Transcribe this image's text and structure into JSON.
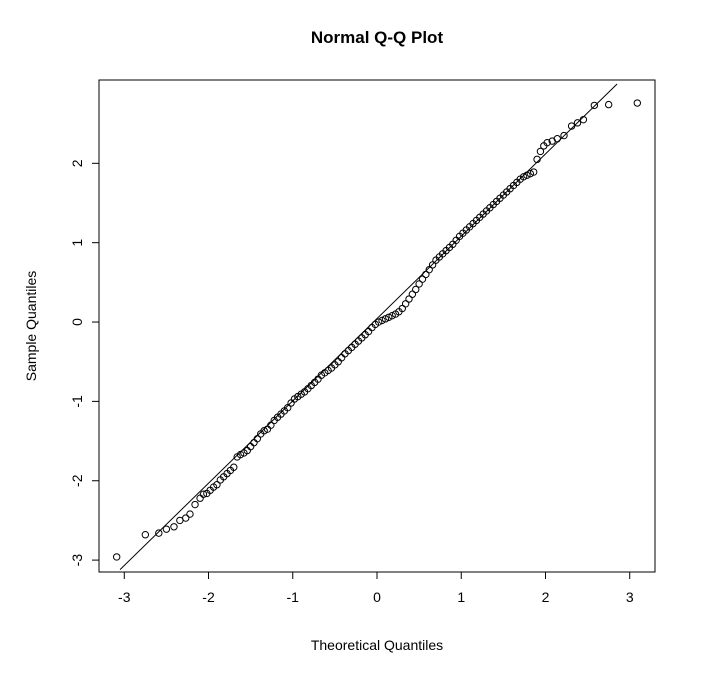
{
  "chart_data": {
    "type": "scatter",
    "title": "Normal Q-Q Plot",
    "xlabel": "Theoretical Quantiles",
    "ylabel": "Sample Quantiles",
    "xlim": [
      -3.3,
      3.3
    ],
    "ylim": [
      -3.15,
      3.05
    ],
    "xticks": [
      -3,
      -2,
      -1,
      0,
      1,
      2,
      3
    ],
    "yticks": [
      -3,
      -2,
      -1,
      0,
      1,
      2
    ],
    "xtick_labels": [
      "-3",
      "-2",
      "-1",
      "0",
      "1",
      "2",
      "3"
    ],
    "ytick_labels": [
      "-3",
      "-2",
      "-1",
      "0",
      "1",
      "2"
    ],
    "grid": false,
    "legend": "none",
    "point_color": "#000000",
    "marker": "open-circle",
    "reference_line": {
      "kind": "qqline",
      "points": [
        [
          -3.05,
          -3.12
        ],
        [
          2.85,
          3.0
        ]
      ]
    },
    "points": [
      [
        -3.09,
        -2.96
      ],
      [
        -2.75,
        -2.68
      ],
      [
        -2.59,
        -2.66
      ],
      [
        -2.5,
        -2.61
      ],
      [
        -2.41,
        -2.58
      ],
      [
        -2.34,
        -2.5
      ],
      [
        -2.27,
        -2.47
      ],
      [
        -2.22,
        -2.42
      ],
      [
        -2.16,
        -2.3
      ],
      [
        -2.1,
        -2.22
      ],
      [
        -2.06,
        -2.17
      ],
      [
        -2.02,
        -2.16
      ],
      [
        -1.98,
        -2.12
      ],
      [
        -1.94,
        -2.08
      ],
      [
        -1.9,
        -2.05
      ],
      [
        -1.86,
        -1.99
      ],
      [
        -1.82,
        -1.95
      ],
      [
        -1.78,
        -1.91
      ],
      [
        -1.74,
        -1.87
      ],
      [
        -1.7,
        -1.83
      ],
      [
        -1.66,
        -1.7
      ],
      [
        -1.62,
        -1.67
      ],
      [
        -1.58,
        -1.65
      ],
      [
        -1.54,
        -1.62
      ],
      [
        -1.5,
        -1.57
      ],
      [
        -1.46,
        -1.52
      ],
      [
        -1.42,
        -1.47
      ],
      [
        -1.38,
        -1.41
      ],
      [
        -1.34,
        -1.37
      ],
      [
        -1.3,
        -1.35
      ],
      [
        -1.26,
        -1.3
      ],
      [
        -1.22,
        -1.24
      ],
      [
        -1.18,
        -1.2
      ],
      [
        -1.14,
        -1.16
      ],
      [
        -1.1,
        -1.12
      ],
      [
        -1.06,
        -1.08
      ],
      [
        -1.02,
        -1.02
      ],
      [
        -0.98,
        -0.97
      ],
      [
        -0.94,
        -0.94
      ],
      [
        -0.9,
        -0.91
      ],
      [
        -0.86,
        -0.88
      ],
      [
        -0.82,
        -0.84
      ],
      [
        -0.78,
        -0.8
      ],
      [
        -0.74,
        -0.76
      ],
      [
        -0.7,
        -0.72
      ],
      [
        -0.66,
        -0.67
      ],
      [
        -0.62,
        -0.64
      ],
      [
        -0.58,
        -0.61
      ],
      [
        -0.54,
        -0.58
      ],
      [
        -0.5,
        -0.54
      ],
      [
        -0.46,
        -0.5
      ],
      [
        -0.42,
        -0.45
      ],
      [
        -0.38,
        -0.4
      ],
      [
        -0.34,
        -0.36
      ],
      [
        -0.3,
        -0.32
      ],
      [
        -0.26,
        -0.28
      ],
      [
        -0.22,
        -0.24
      ],
      [
        -0.18,
        -0.2
      ],
      [
        -0.14,
        -0.16
      ],
      [
        -0.1,
        -0.12
      ],
      [
        -0.06,
        -0.07
      ],
      [
        -0.02,
        -0.03
      ],
      [
        0.02,
        0.0
      ],
      [
        0.06,
        0.02
      ],
      [
        0.1,
        0.04
      ],
      [
        0.14,
        0.06
      ],
      [
        0.18,
        0.08
      ],
      [
        0.22,
        0.1
      ],
      [
        0.26,
        0.13
      ],
      [
        0.3,
        0.17
      ],
      [
        0.34,
        0.23
      ],
      [
        0.38,
        0.29
      ],
      [
        0.42,
        0.35
      ],
      [
        0.46,
        0.41
      ],
      [
        0.5,
        0.48
      ],
      [
        0.54,
        0.54
      ],
      [
        0.58,
        0.6
      ],
      [
        0.62,
        0.66
      ],
      [
        0.66,
        0.72
      ],
      [
        0.7,
        0.78
      ],
      [
        0.74,
        0.82
      ],
      [
        0.78,
        0.86
      ],
      [
        0.82,
        0.9
      ],
      [
        0.86,
        0.94
      ],
      [
        0.9,
        0.98
      ],
      [
        0.94,
        1.03
      ],
      [
        0.98,
        1.08
      ],
      [
        1.02,
        1.12
      ],
      [
        1.06,
        1.16
      ],
      [
        1.1,
        1.2
      ],
      [
        1.14,
        1.24
      ],
      [
        1.18,
        1.28
      ],
      [
        1.22,
        1.32
      ],
      [
        1.26,
        1.36
      ],
      [
        1.3,
        1.4
      ],
      [
        1.34,
        1.44
      ],
      [
        1.38,
        1.48
      ],
      [
        1.42,
        1.52
      ],
      [
        1.46,
        1.56
      ],
      [
        1.5,
        1.6
      ],
      [
        1.54,
        1.64
      ],
      [
        1.58,
        1.68
      ],
      [
        1.62,
        1.72
      ],
      [
        1.66,
        1.76
      ],
      [
        1.7,
        1.8
      ],
      [
        1.74,
        1.83
      ],
      [
        1.78,
        1.85
      ],
      [
        1.82,
        1.87
      ],
      [
        1.86,
        1.89
      ],
      [
        1.9,
        2.05
      ],
      [
        1.94,
        2.15
      ],
      [
        1.98,
        2.22
      ],
      [
        2.02,
        2.26
      ],
      [
        2.08,
        2.28
      ],
      [
        2.14,
        2.31
      ],
      [
        2.22,
        2.35
      ],
      [
        2.31,
        2.47
      ],
      [
        2.38,
        2.51
      ],
      [
        2.45,
        2.55
      ],
      [
        2.58,
        2.73
      ],
      [
        2.75,
        2.74
      ],
      [
        3.09,
        2.76
      ]
    ]
  }
}
